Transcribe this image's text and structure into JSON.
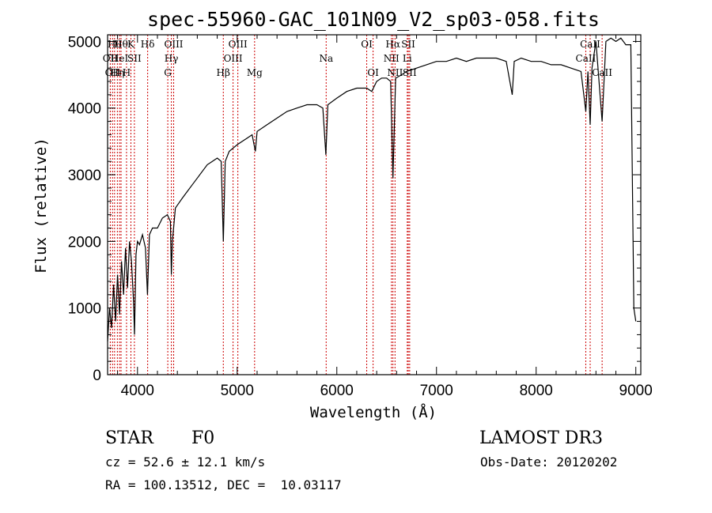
{
  "chart_data": {
    "type": "line",
    "title": "spec-55960-GAC_101N09_V2_sp03-058.fits",
    "xlabel": "Wavelength (Å)",
    "ylabel": "Flux (relative)",
    "xlim": [
      3700,
      9050
    ],
    "ylim": [
      0,
      5100
    ],
    "x_ticks": [
      4000,
      5000,
      6000,
      7000,
      8000,
      9000
    ],
    "y_ticks": [
      0,
      1000,
      2000,
      3000,
      4000,
      5000
    ],
    "grid": false,
    "legend": "none",
    "series": [
      {
        "color": "#000000",
        "points": [
          [
            3700,
            500
          ],
          [
            3720,
            1000
          ],
          [
            3740,
            700
          ],
          [
            3760,
            1350
          ],
          [
            3780,
            800
          ],
          [
            3800,
            1500
          ],
          [
            3820,
            900
          ],
          [
            3840,
            1700
          ],
          [
            3860,
            1200
          ],
          [
            3880,
            1900
          ],
          [
            3900,
            1300
          ],
          [
            3920,
            2000
          ],
          [
            3940,
            1700
          ],
          [
            3960,
            1100
          ],
          [
            3970,
            600
          ],
          [
            3985,
            1800
          ],
          [
            4000,
            2000
          ],
          [
            4020,
            1950
          ],
          [
            4050,
            2100
          ],
          [
            4080,
            1900
          ],
          [
            4100,
            1200
          ],
          [
            4120,
            2100
          ],
          [
            4150,
            2200
          ],
          [
            4200,
            2200
          ],
          [
            4250,
            2350
          ],
          [
            4300,
            2400
          ],
          [
            4330,
            2300
          ],
          [
            4340,
            1500
          ],
          [
            4350,
            2000
          ],
          [
            4380,
            2500
          ],
          [
            4450,
            2650
          ],
          [
            4500,
            2750
          ],
          [
            4550,
            2850
          ],
          [
            4600,
            2950
          ],
          [
            4650,
            3050
          ],
          [
            4700,
            3150
          ],
          [
            4750,
            3200
          ],
          [
            4800,
            3250
          ],
          [
            4840,
            3200
          ],
          [
            4861,
            2000
          ],
          [
            4880,
            3200
          ],
          [
            4920,
            3350
          ],
          [
            4960,
            3400
          ],
          [
            5000,
            3450
          ],
          [
            5050,
            3500
          ],
          [
            5100,
            3550
          ],
          [
            5150,
            3600
          ],
          [
            5183,
            3350
          ],
          [
            5200,
            3650
          ],
          [
            5300,
            3750
          ],
          [
            5400,
            3850
          ],
          [
            5500,
            3950
          ],
          [
            5600,
            4000
          ],
          [
            5700,
            4050
          ],
          [
            5800,
            4050
          ],
          [
            5860,
            4000
          ],
          [
            5890,
            3300
          ],
          [
            5910,
            4050
          ],
          [
            6000,
            4150
          ],
          [
            6100,
            4250
          ],
          [
            6200,
            4300
          ],
          [
            6300,
            4300
          ],
          [
            6350,
            4250
          ],
          [
            6400,
            4400
          ],
          [
            6450,
            4450
          ],
          [
            6500,
            4450
          ],
          [
            6540,
            4400
          ],
          [
            6563,
            2950
          ],
          [
            6590,
            4450
          ],
          [
            6650,
            4500
          ],
          [
            6700,
            4550
          ],
          [
            6800,
            4600
          ],
          [
            6900,
            4650
          ],
          [
            7000,
            4700
          ],
          [
            7100,
            4700
          ],
          [
            7200,
            4750
          ],
          [
            7300,
            4700
          ],
          [
            7400,
            4750
          ],
          [
            7500,
            4750
          ],
          [
            7600,
            4750
          ],
          [
            7700,
            4700
          ],
          [
            7760,
            4200
          ],
          [
            7780,
            4700
          ],
          [
            7850,
            4750
          ],
          [
            7950,
            4700
          ],
          [
            8050,
            4700
          ],
          [
            8150,
            4650
          ],
          [
            8250,
            4650
          ],
          [
            8350,
            4600
          ],
          [
            8450,
            4550
          ],
          [
            8498,
            3950
          ],
          [
            8520,
            4550
          ],
          [
            8542,
            3750
          ],
          [
            8560,
            4600
          ],
          [
            8600,
            5000
          ],
          [
            8662,
            3800
          ],
          [
            8700,
            5000
          ],
          [
            8750,
            5050
          ],
          [
            8800,
            5000
          ],
          [
            8850,
            5050
          ],
          [
            8900,
            4950
          ],
          [
            8950,
            4950
          ],
          [
            8980,
            1000
          ],
          [
            9000,
            800
          ]
        ]
      }
    ],
    "lines": [
      {
        "wavelength": 3727,
        "row": 1,
        "label": "OII"
      },
      {
        "wavelength": 3750,
        "row": 2,
        "label": "OII"
      },
      {
        "wavelength": 3770,
        "row": 0,
        "label": "Hθ"
      },
      {
        "wavelength": 3798,
        "row": 2,
        "label": "Hη"
      },
      {
        "wavelength": 3820,
        "row": 1,
        "label": "HeI"
      },
      {
        "wavelength": 3835,
        "row": 0,
        "label": "Hθ"
      },
      {
        "wavelength": 3890,
        "row": 2,
        "label": "H"
      },
      {
        "wavelength": 3934,
        "row": 0,
        "label": "K"
      },
      {
        "wavelength": 3969,
        "row": 1,
        "label": "SII"
      },
      {
        "wavelength": 4102,
        "row": 0,
        "label": "Hδ"
      },
      {
        "wavelength": 4304,
        "row": 2,
        "label": "G"
      },
      {
        "wavelength": 4340,
        "row": 1,
        "label": "Hγ"
      },
      {
        "wavelength": 4363,
        "row": 0,
        "label": "OIII"
      },
      {
        "wavelength": 4861,
        "row": 2,
        "label": "Hβ"
      },
      {
        "wavelength": 4959,
        "row": 1,
        "label": "OIII"
      },
      {
        "wavelength": 5007,
        "row": 0,
        "label": "OIII"
      },
      {
        "wavelength": 5175,
        "row": 2,
        "label": "Mg"
      },
      {
        "wavelength": 5893,
        "row": 1,
        "label": "Na"
      },
      {
        "wavelength": 6300,
        "row": 0,
        "label": "OI"
      },
      {
        "wavelength": 6364,
        "row": 2,
        "label": "OI"
      },
      {
        "wavelength": 6548,
        "row": 1,
        "label": "NII"
      },
      {
        "wavelength": 6563,
        "row": 0,
        "label": "Hα"
      },
      {
        "wavelength": 6584,
        "row": 2,
        "label": "NII"
      },
      {
        "wavelength": 6707,
        "row": 1,
        "label": "Li"
      },
      {
        "wavelength": 6717,
        "row": 0,
        "label": "SII"
      },
      {
        "wavelength": 6731,
        "row": 2,
        "label": "SII"
      },
      {
        "wavelength": 8498,
        "row": 1,
        "label": "CaII"
      },
      {
        "wavelength": 8542,
        "row": 0,
        "label": "CaII"
      },
      {
        "wavelength": 8662,
        "row": 2,
        "label": "CaII"
      }
    ],
    "line_marker_color": "#cc0000",
    "annotations": {
      "class": "STAR",
      "subclass": "F0",
      "survey": "LAMOST DR3",
      "cz": "cz = 52.6 ± 12.1 km/s",
      "obs_date": "Obs-Date: 20120202",
      "coords": "RA = 100.13512, DEC =  10.03117"
    }
  }
}
